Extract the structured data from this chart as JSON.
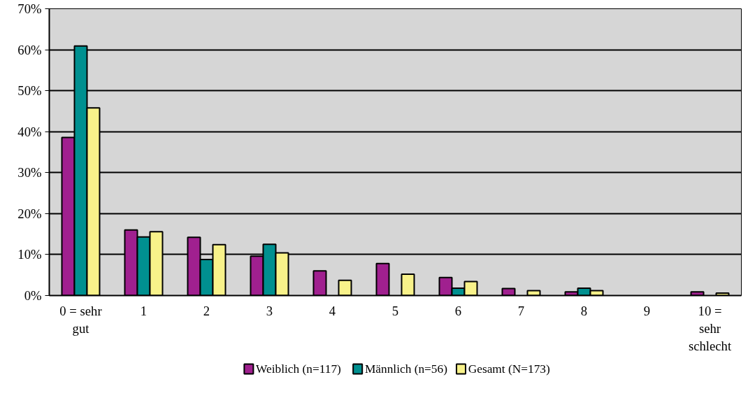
{
  "chart_data": {
    "type": "bar",
    "categories": [
      "0 = sehr\ngut",
      "1",
      "2",
      "3",
      "4",
      "5",
      "6",
      "7",
      "8",
      "9",
      "10 =\nsehr\nschlecht"
    ],
    "series": [
      {
        "name": "Weiblich (n=117)",
        "color": "#a0208f",
        "values": [
          38.6,
          16.0,
          14.2,
          9.6,
          6.0,
          7.8,
          4.4,
          1.7,
          0.9,
          0,
          0.9
        ]
      },
      {
        "name": "Männlich (n=56)",
        "color": "#009090",
        "values": [
          60.9,
          14.3,
          8.8,
          12.5,
          0,
          0,
          1.8,
          0,
          1.8,
          0,
          0
        ]
      },
      {
        "name": "Gesamt (N=173)",
        "color": "#f8f28a",
        "values": [
          45.8,
          15.6,
          12.4,
          10.4,
          3.7,
          5.2,
          3.4,
          1.2,
          1.2,
          0,
          0.6
        ]
      }
    ],
    "ylim": [
      0,
      70
    ],
    "yticks": [
      {
        "value": 0,
        "label": "0%"
      },
      {
        "value": 10,
        "label": "10%"
      },
      {
        "value": 20,
        "label": "20%"
      },
      {
        "value": 30,
        "label": "30%"
      },
      {
        "value": 40,
        "label": "40%"
      },
      {
        "value": 50,
        "label": "50%"
      },
      {
        "value": 60,
        "label": "60%"
      },
      {
        "value": 70,
        "label": "70%"
      }
    ],
    "grid": "y",
    "legend": "bottom"
  }
}
